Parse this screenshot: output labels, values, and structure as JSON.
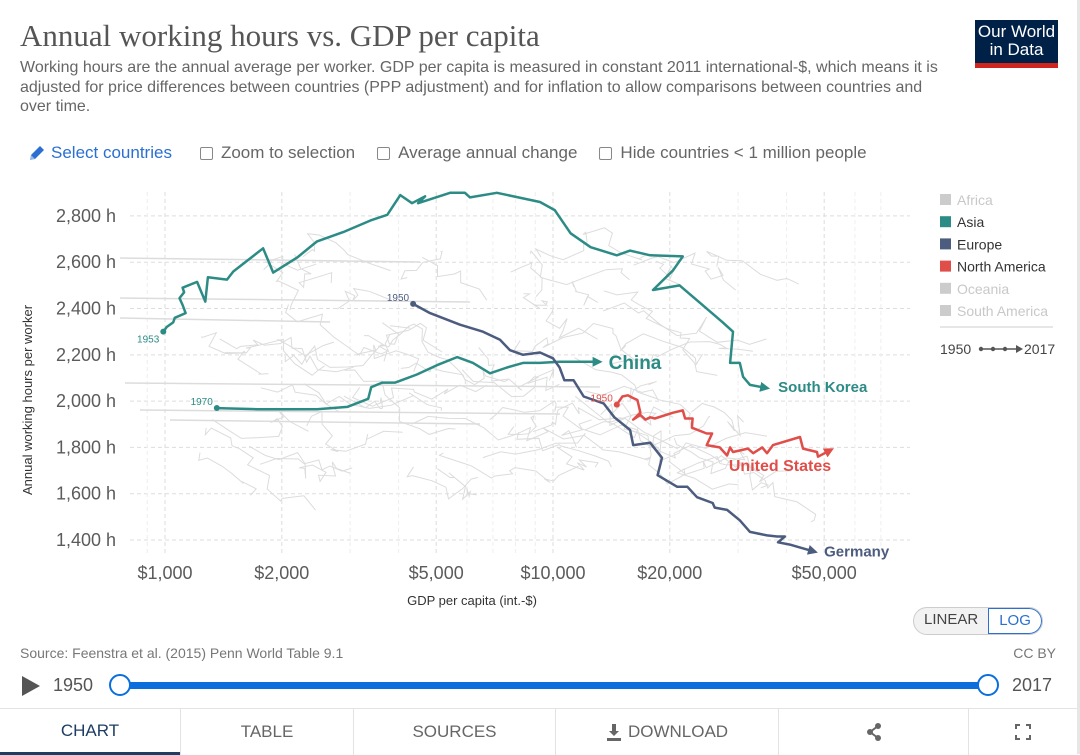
{
  "header": {
    "title": "Annual working hours vs. GDP per capita",
    "subtitle": "Working hours are the annual average per worker. GDP per capita is measured in constant 2011 international-$, which means it is adjusted for price differences between countries (PPP adjustment) and for inflation to allow comparisons between countries and over time.",
    "logo_text": [
      "Our World",
      "in Data"
    ]
  },
  "controls": {
    "select_countries": "Select countries",
    "zoom_to_selection": "Zoom to selection",
    "average_annual_change": "Average annual change",
    "hide_small": "Hide countries < 1 million people",
    "icon": "pencil-icon"
  },
  "colors": {
    "Asia": "#2c8c85",
    "Europe": "#4c5c7f",
    "North America": "#e04e4a",
    "inactive": "#cccccc",
    "accent": "#0a6fdc"
  },
  "chart_data": {
    "type": "scatter",
    "connected": true,
    "xlabel": "GDP per capita (int.-$)",
    "ylabel": "Annual working hours per worker",
    "xscale": "log",
    "xlim": [
      800,
      82000
    ],
    "ylim": [
      1335,
      2905
    ],
    "grid": true,
    "xticks": [
      1000,
      2000,
      5000,
      10000,
      20000,
      50000
    ],
    "xtick_labels": [
      "$1,000",
      "$2,000",
      "$5,000",
      "$10,000",
      "$20,000",
      "$50,000"
    ],
    "yticks": [
      1400,
      1600,
      1800,
      2000,
      2200,
      2400,
      2600,
      2800
    ],
    "ytick_labels": [
      "1,400 h",
      "1,600 h",
      "1,800 h",
      "2,000 h",
      "2,200 h",
      "2,400 h",
      "2,600 h",
      "2,800 h"
    ],
    "legend": {
      "placement": "right",
      "entries": [
        {
          "label": "Africa",
          "active": false
        },
        {
          "label": "Asia",
          "active": true
        },
        {
          "label": "Europe",
          "active": true
        },
        {
          "label": "North America",
          "active": true
        },
        {
          "label": "Oceania",
          "active": false
        },
        {
          "label": "South America",
          "active": false
        }
      ],
      "time_start": "1950",
      "time_end": "2017"
    },
    "series": [
      {
        "name": "South Korea",
        "region": "Asia",
        "start_label": "1953",
        "points": [
          [
            990,
            2300
          ],
          [
            1010,
            2320
          ],
          [
            1050,
            2340
          ],
          [
            1060,
            2360
          ],
          [
            1130,
            2380
          ],
          [
            1110,
            2415
          ],
          [
            1090,
            2445
          ],
          [
            1120,
            2470
          ],
          [
            1110,
            2490
          ],
          [
            1210,
            2515
          ],
          [
            1270,
            2430
          ],
          [
            1290,
            2535
          ],
          [
            1445,
            2525
          ],
          [
            1500,
            2560
          ],
          [
            1790,
            2660
          ],
          [
            1900,
            2555
          ],
          [
            2190,
            2620
          ],
          [
            2465,
            2690
          ],
          [
            2880,
            2730
          ],
          [
            3380,
            2780
          ],
          [
            3740,
            2805
          ],
          [
            4040,
            2890
          ],
          [
            4330,
            2855
          ],
          [
            4680,
            2885
          ],
          [
            4490,
            2855
          ],
          [
            5430,
            2900
          ],
          [
            5930,
            2900
          ],
          [
            6110,
            2880
          ],
          [
            7170,
            2900
          ],
          [
            9260,
            2860
          ],
          [
            10100,
            2825
          ],
          [
            11100,
            2725
          ],
          [
            12500,
            2665
          ],
          [
            14600,
            2630
          ],
          [
            15800,
            2650
          ],
          [
            17800,
            2630
          ],
          [
            21600,
            2625
          ],
          [
            20400,
            2565
          ],
          [
            18100,
            2480
          ],
          [
            21200,
            2500
          ],
          [
            23900,
            2425
          ],
          [
            27400,
            2340
          ],
          [
            29100,
            2300
          ],
          [
            28600,
            2165
          ],
          [
            30300,
            2165
          ],
          [
            30900,
            2105
          ],
          [
            32200,
            2070
          ],
          [
            34600,
            2060
          ]
        ]
      },
      {
        "name": "China",
        "region": "Asia",
        "start_label": "1970",
        "points": [
          [
            1360,
            1970
          ],
          [
            1730,
            1965
          ],
          [
            2465,
            1965
          ],
          [
            2950,
            1975
          ],
          [
            3340,
            2010
          ],
          [
            3400,
            2060
          ],
          [
            3630,
            2080
          ],
          [
            3920,
            2080
          ],
          [
            4460,
            2115
          ],
          [
            5020,
            2155
          ],
          [
            5660,
            2190
          ],
          [
            6220,
            2165
          ],
          [
            6880,
            2120
          ],
          [
            7610,
            2145
          ],
          [
            8370,
            2165
          ],
          [
            9260,
            2165
          ],
          [
            10400,
            2170
          ],
          [
            12800,
            2170
          ]
        ]
      },
      {
        "name": "Germany",
        "region": "Europe",
        "start_label": "1950",
        "points": [
          [
            4360,
            2420
          ],
          [
            4820,
            2380
          ],
          [
            5760,
            2330
          ],
          [
            6600,
            2300
          ],
          [
            7300,
            2265
          ],
          [
            7750,
            2220
          ],
          [
            8370,
            2200
          ],
          [
            9260,
            2210
          ],
          [
            10000,
            2185
          ],
          [
            10400,
            2145
          ],
          [
            10700,
            2090
          ],
          [
            11300,
            2090
          ],
          [
            12000,
            2020
          ],
          [
            13500,
            1990
          ],
          [
            14400,
            1930
          ],
          [
            15800,
            1875
          ],
          [
            16100,
            1810
          ],
          [
            17800,
            1820
          ],
          [
            19100,
            1755
          ],
          [
            18600,
            1680
          ],
          [
            20900,
            1630
          ],
          [
            22200,
            1630
          ],
          [
            23500,
            1585
          ],
          [
            25800,
            1560
          ],
          [
            26100,
            1540
          ],
          [
            28100,
            1530
          ],
          [
            30300,
            1485
          ],
          [
            32200,
            1435
          ],
          [
            35600,
            1420
          ],
          [
            37800,
            1415
          ],
          [
            39600,
            1415
          ],
          [
            38000,
            1390
          ],
          [
            40800,
            1380
          ],
          [
            42800,
            1370
          ],
          [
            46000,
            1355
          ]
        ]
      },
      {
        "name": "United States",
        "region": "North America",
        "start_label": "1950",
        "points": [
          [
            14600,
            1985
          ],
          [
            15100,
            2020
          ],
          [
            15600,
            2025
          ],
          [
            16000,
            2015
          ],
          [
            16500,
            2005
          ],
          [
            16800,
            1950
          ],
          [
            16100,
            1920
          ],
          [
            16800,
            1940
          ],
          [
            17300,
            1920
          ],
          [
            17800,
            1930
          ],
          [
            18300,
            1925
          ],
          [
            20400,
            1950
          ],
          [
            21600,
            1960
          ],
          [
            21900,
            1925
          ],
          [
            22900,
            1925
          ],
          [
            22800,
            1885
          ],
          [
            24900,
            1860
          ],
          [
            25700,
            1860
          ],
          [
            24900,
            1810
          ],
          [
            26900,
            1800
          ],
          [
            28100,
            1765
          ],
          [
            28600,
            1800
          ],
          [
            29100,
            1780
          ],
          [
            31800,
            1795
          ],
          [
            32800,
            1775
          ],
          [
            34600,
            1800
          ],
          [
            35600,
            1775
          ],
          [
            36900,
            1810
          ],
          [
            43300,
            1845
          ],
          [
            44100,
            1795
          ],
          [
            47900,
            1780
          ],
          [
            48200,
            1760
          ],
          [
            50800,
            1780
          ]
        ]
      }
    ]
  },
  "scale_toggle": {
    "linear": "LINEAR",
    "log": "LOG",
    "selected": "LOG"
  },
  "footer": {
    "source": "Source: Feenstra et al. (2015) Penn World Table 9.1",
    "license": "CC BY"
  },
  "timeline": {
    "start": "1950",
    "end": "2017",
    "play_icon": "play-icon"
  },
  "tabs": [
    {
      "label": "CHART",
      "active": true
    },
    {
      "label": "TABLE"
    },
    {
      "label": "SOURCES"
    },
    {
      "label": "DOWNLOAD",
      "icon": "download-icon"
    },
    {
      "label": "",
      "icon": "share-icon"
    },
    {
      "label": "",
      "icon": "fullscreen-icon"
    }
  ]
}
